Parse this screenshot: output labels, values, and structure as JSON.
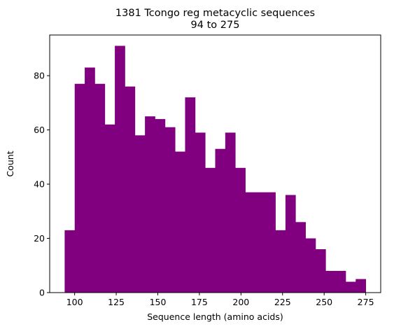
{
  "chart_data": {
    "type": "bar",
    "title": "1381 Tcongo reg metacyclic sequences",
    "subtitle": "94 to 275",
    "xlabel": "Sequence length (amino acids)",
    "ylabel": "Count",
    "xlim": [
      85,
      284
    ],
    "ylim": [
      0,
      95
    ],
    "xticks": [
      100,
      125,
      150,
      175,
      200,
      225,
      250,
      275
    ],
    "yticks": [
      0,
      20,
      40,
      60,
      80
    ],
    "bin_start": 94,
    "bin_width": 6.0333,
    "values": [
      23,
      77,
      83,
      77,
      62,
      91,
      76,
      58,
      65,
      64,
      61,
      52,
      72,
      59,
      46,
      53,
      59,
      46,
      37,
      37,
      37,
      23,
      36,
      26,
      20,
      16,
      8,
      8,
      4,
      5
    ],
    "bar_color": "#800080",
    "grid": false,
    "legend": "none"
  }
}
